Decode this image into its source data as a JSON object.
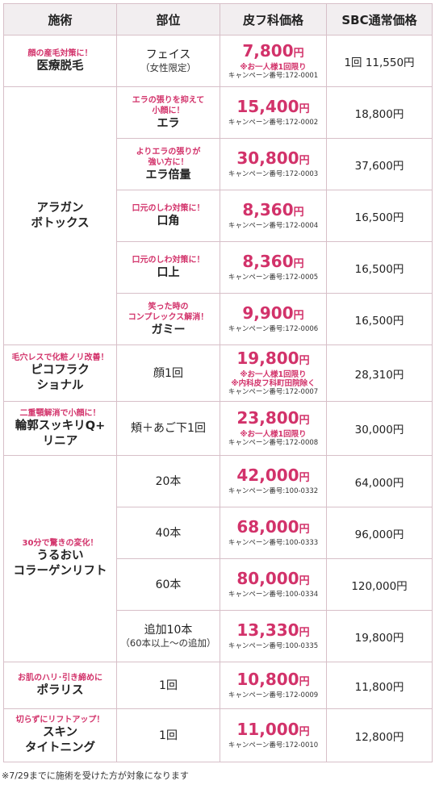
{
  "headers": [
    "施術",
    "部位",
    "皮フ科価格",
    "SBC通常価格"
  ],
  "rows": {
    "datsumo": {
      "tag": "顔の産毛対策に！",
      "name": "医療脱毛",
      "part": "フェイス",
      "part_sub": "（女性限定）",
      "price": "7,800",
      "unit": "円",
      "note": "※お一人様1回限り",
      "campaign": "キャンペーン番号:172-0001",
      "sbc": "1回 11,550円"
    },
    "botox": {
      "name_1": "アラガン",
      "name_2": "ボトックス",
      "items": [
        {
          "tag_1": "エラの張りを抑えて",
          "tag_2": "小顔に！",
          "part": "エラ",
          "price": "15,400",
          "unit": "円",
          "campaign": "キャンペーン番号:172-0002",
          "sbc": "18,800円"
        },
        {
          "tag_1": "よりエラの張りが",
          "tag_2": "強い方に！",
          "part": "エラ倍量",
          "price": "30,800",
          "unit": "円",
          "campaign": "キャンペーン番号:172-0003",
          "sbc": "37,600円"
        },
        {
          "tag_1": "口元のしわ対策に！",
          "tag_2": "",
          "part": "口角",
          "price": "8,360",
          "unit": "円",
          "campaign": "キャンペーン番号:172-0004",
          "sbc": "16,500円"
        },
        {
          "tag_1": "口元のしわ対策に！",
          "tag_2": "",
          "part": "口上",
          "price": "8,360",
          "unit": "円",
          "campaign": "キャンペーン番号:172-0005",
          "sbc": "16,500円"
        },
        {
          "tag_1": "笑った時の",
          "tag_2": "コンプレックス解消！",
          "part": "ガミー",
          "price": "9,900",
          "unit": "円",
          "campaign": "キャンペーン番号:172-0006",
          "sbc": "16,500円"
        }
      ]
    },
    "pico": {
      "tag": "毛穴レスで化粧ノリ改善！",
      "name_1": "ピコフラク",
      "name_2": "ショナル",
      "part": "顔1回",
      "price": "19,800",
      "unit": "円",
      "note_1": "※お一人様1回限り",
      "note_2": "※内科皮フ科町田院除く",
      "campaign": "キャンペーン番号:172-0007",
      "sbc": "28,310円"
    },
    "rinkaku": {
      "tag": "二重顎解消で小顔に！",
      "name_1": "輪郭スッキリQ+",
      "name_2": "リニア",
      "part": "頬＋あご下1回",
      "price": "23,800",
      "unit": "円",
      "note": "※お一人様1回限り",
      "campaign": "キャンペーン番号:172-0008",
      "sbc": "30,000円"
    },
    "collagen": {
      "tag": "30分で驚きの変化！",
      "name_1": "うるおい",
      "name_2": "コラーゲンリフト",
      "items": [
        {
          "part": "20本",
          "part_sub": "",
          "price": "42,000",
          "unit": "円",
          "campaign": "キャンペーン番号:100-0332",
          "sbc": "64,000円"
        },
        {
          "part": "40本",
          "part_sub": "",
          "price": "68,000",
          "unit": "円",
          "campaign": "キャンペーン番号:100-0333",
          "sbc": "96,000円"
        },
        {
          "part": "60本",
          "part_sub": "",
          "price": "80,000",
          "unit": "円",
          "campaign": "キャンペーン番号:100-0334",
          "sbc": "120,000円"
        },
        {
          "part": "追加10本",
          "part_sub": "（60本以上～の追加）",
          "price": "13,330",
          "unit": "円",
          "campaign": "キャンペーン番号:100-0335",
          "sbc": "19,800円"
        }
      ]
    },
    "polaris": {
      "tag": "お肌のハリ･引き締めに",
      "name": "ポラリス",
      "part": "1回",
      "price": "10,800",
      "unit": "円",
      "campaign": "キャンペーン番号:172-0009",
      "sbc": "11,800円"
    },
    "skin": {
      "tag": "切らずにリフトアップ！",
      "name_1": "スキン",
      "name_2": "タイトニング",
      "part": "1回",
      "price": "11,000",
      "unit": "円",
      "campaign": "キャンペーン番号:172-0010",
      "sbc": "12,800円"
    }
  },
  "footnote": "※7/29までに施術を受けた方が対象になります",
  "colors": {
    "accent": "#d2326a",
    "border": "#d7bfc8",
    "header_bg": "#f2eef0"
  }
}
